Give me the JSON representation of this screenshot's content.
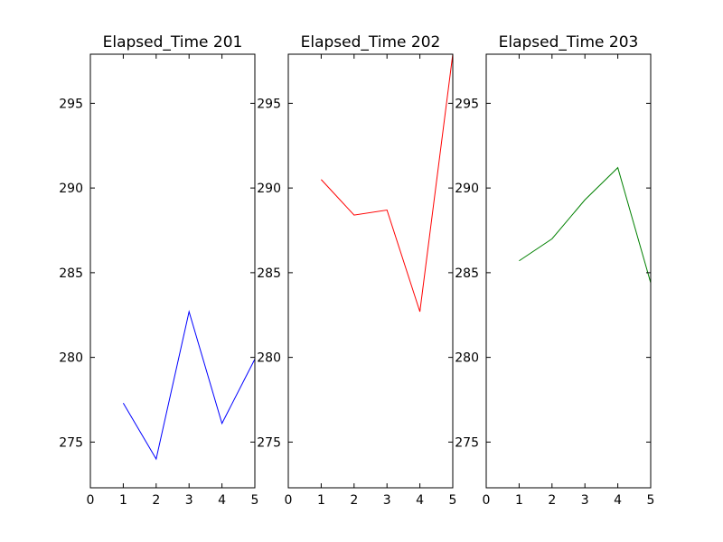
{
  "chart_data": [
    {
      "type": "line",
      "title": "Elapsed_Time 201",
      "x": [
        1,
        2,
        3,
        4,
        5
      ],
      "series": [
        {
          "values": [
            277.3,
            274.0,
            282.7,
            276.1,
            279.9
          ],
          "color": "#0000ff"
        }
      ],
      "xlim": [
        0,
        5
      ],
      "ylim": [
        272.3,
        297.9
      ],
      "xticks": [
        "0",
        "1",
        "2",
        "3",
        "4",
        "5"
      ],
      "yticks": [
        "275",
        "280",
        "285",
        "290",
        "295"
      ],
      "grid": false
    },
    {
      "type": "line",
      "title": "Elapsed_Time 202",
      "x": [
        1,
        2,
        3,
        4,
        5
      ],
      "series": [
        {
          "values": [
            290.5,
            288.4,
            288.7,
            282.7,
            297.9
          ],
          "color": "#ff0000"
        }
      ],
      "xlim": [
        0,
        5
      ],
      "ylim": [
        272.3,
        297.9
      ],
      "xticks": [
        "0",
        "1",
        "2",
        "3",
        "4",
        "5"
      ],
      "yticks": [
        "275",
        "280",
        "285",
        "290",
        "295"
      ],
      "grid": false
    },
    {
      "type": "line",
      "title": "Elapsed_Time 203",
      "x": [
        1,
        2,
        3,
        4,
        5
      ],
      "series": [
        {
          "values": [
            285.7,
            287.0,
            289.3,
            291.2,
            284.4
          ],
          "color": "#008000"
        }
      ],
      "xlim": [
        0,
        5
      ],
      "ylim": [
        272.3,
        297.9
      ],
      "xticks": [
        "0",
        "1",
        "2",
        "3",
        "4",
        "5"
      ],
      "yticks": [
        "275",
        "280",
        "285",
        "290",
        "295"
      ],
      "grid": false
    }
  ]
}
